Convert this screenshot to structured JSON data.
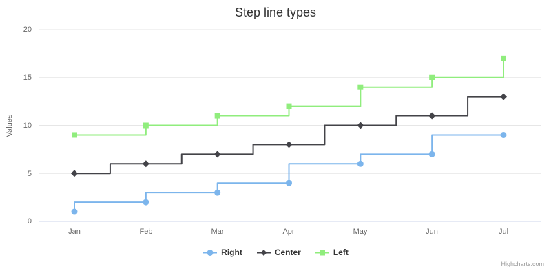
{
  "title": "Step line types",
  "credits_label": "Highcharts.com",
  "colors": {
    "grid_line": "#e6e6e6",
    "x_axis_line": "#ccd6eb",
    "title_text": "#333333",
    "tick_text": "#666666",
    "legend_text": "#333333",
    "credits_text": "#999999"
  },
  "chart_data": {
    "type": "line",
    "subtype": "step-line",
    "title": "Step line types",
    "xlabel": "",
    "ylabel": "Values",
    "categories": [
      "Jan",
      "Feb",
      "Mar",
      "Apr",
      "May",
      "Jun",
      "Jul"
    ],
    "ylim": [
      0,
      20
    ],
    "yticks": [
      0,
      5,
      10,
      15,
      20
    ],
    "grid": "horizontal",
    "legend_position": "bottom-center",
    "series": [
      {
        "name": "Right",
        "step": "right",
        "marker": "circle",
        "color": "#7cb5ec",
        "values": [
          1,
          2,
          3,
          4,
          6,
          7,
          9
        ]
      },
      {
        "name": "Center",
        "step": "center",
        "marker": "diamond",
        "color": "#434348",
        "values": [
          5,
          6,
          7,
          8,
          10,
          11,
          13
        ]
      },
      {
        "name": "Left",
        "step": "left",
        "marker": "square",
        "color": "#90ed7d",
        "values": [
          9,
          10,
          11,
          12,
          14,
          15,
          17
        ]
      }
    ]
  }
}
